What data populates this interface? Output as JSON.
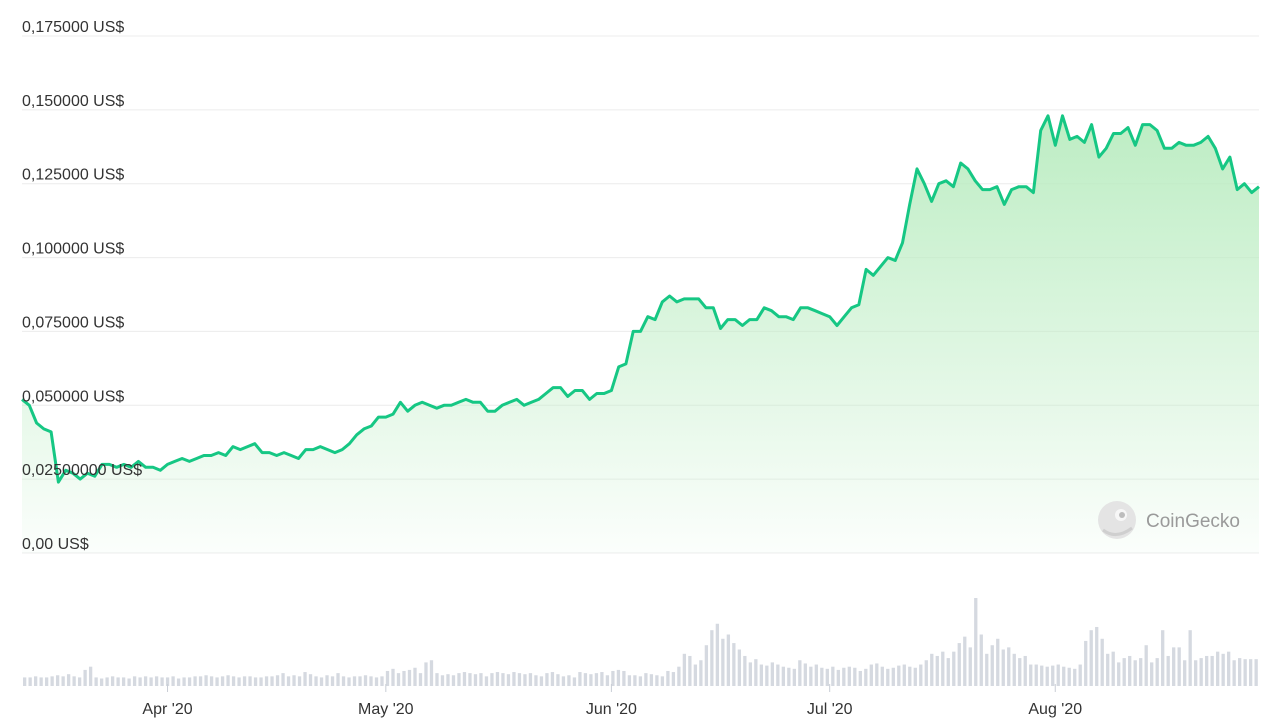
{
  "chart_data": {
    "type": "area",
    "title": "",
    "xlabel": "",
    "ylabel": "",
    "watermark": "CoinGecko",
    "line_color": "#16c784",
    "fill_color": "#b9ecc0",
    "volume_color": "#d5d9e0",
    "grid": true,
    "legend": "none",
    "x_range": [
      "2020-03-12",
      "2020-08-25"
    ],
    "ylim": [
      0,
      0.175
    ],
    "y_ticks": [
      {
        "value": 0,
        "label": "0,00 US$"
      },
      {
        "value": 0.025,
        "label": "0,02500000 US$"
      },
      {
        "value": 0.05,
        "label": "0,050000 US$"
      },
      {
        "value": 0.075,
        "label": "0,075000 US$"
      },
      {
        "value": 0.1,
        "label": "0,100000 US$"
      },
      {
        "value": 0.125,
        "label": "0,125000 US$"
      },
      {
        "value": 0.15,
        "label": "0,150000 US$"
      },
      {
        "value": 0.175,
        "label": "0,175000 US$"
      }
    ],
    "x_ticks": [
      {
        "date": "2020-04-01",
        "label": "Apr '20"
      },
      {
        "date": "2020-05-01",
        "label": "May '20"
      },
      {
        "date": "2020-06-01",
        "label": "Jun '20"
      },
      {
        "date": "2020-07-01",
        "label": "Jul '20"
      },
      {
        "date": "2020-08-01",
        "label": "Aug '20"
      }
    ],
    "series": [
      {
        "points": [
          [
            "2020-03-12",
            0.052
          ],
          [
            "2020-03-13",
            0.05
          ],
          [
            "2020-03-14",
            0.044
          ],
          [
            "2020-03-15",
            0.042
          ],
          [
            "2020-03-16",
            0.041
          ],
          [
            "2020-03-17",
            0.024
          ],
          [
            "2020-03-18",
            0.028
          ],
          [
            "2020-03-19",
            0.027
          ],
          [
            "2020-03-20",
            0.025
          ],
          [
            "2020-03-21",
            0.027
          ],
          [
            "2020-03-22",
            0.026
          ],
          [
            "2020-03-23",
            0.03
          ],
          [
            "2020-03-24",
            0.03
          ],
          [
            "2020-03-25",
            0.029
          ],
          [
            "2020-03-26",
            0.03
          ],
          [
            "2020-03-27",
            0.029
          ],
          [
            "2020-03-28",
            0.031
          ],
          [
            "2020-03-29",
            0.029
          ],
          [
            "2020-03-30",
            0.029
          ],
          [
            "2020-03-31",
            0.028
          ],
          [
            "2020-04-01",
            0.03
          ],
          [
            "2020-04-02",
            0.031
          ],
          [
            "2020-04-03",
            0.032
          ],
          [
            "2020-04-04",
            0.031
          ],
          [
            "2020-04-05",
            0.032
          ],
          [
            "2020-04-06",
            0.033
          ],
          [
            "2020-04-07",
            0.033
          ],
          [
            "2020-04-08",
            0.034
          ],
          [
            "2020-04-09",
            0.033
          ],
          [
            "2020-04-10",
            0.036
          ],
          [
            "2020-04-11",
            0.035
          ],
          [
            "2020-04-12",
            0.036
          ],
          [
            "2020-04-13",
            0.037
          ],
          [
            "2020-04-14",
            0.034
          ],
          [
            "2020-04-15",
            0.034
          ],
          [
            "2020-04-16",
            0.033
          ],
          [
            "2020-04-17",
            0.034
          ],
          [
            "2020-04-18",
            0.033
          ],
          [
            "2020-04-19",
            0.032
          ],
          [
            "2020-04-20",
            0.035
          ],
          [
            "2020-04-21",
            0.035
          ],
          [
            "2020-04-22",
            0.036
          ],
          [
            "2020-04-23",
            0.035
          ],
          [
            "2020-04-24",
            0.034
          ],
          [
            "2020-04-25",
            0.035
          ],
          [
            "2020-04-26",
            0.037
          ],
          [
            "2020-04-27",
            0.04
          ],
          [
            "2020-04-28",
            0.042
          ],
          [
            "2020-04-29",
            0.043
          ],
          [
            "2020-04-30",
            0.046
          ],
          [
            "2020-05-01",
            0.046
          ],
          [
            "2020-05-02",
            0.047
          ],
          [
            "2020-05-03",
            0.051
          ],
          [
            "2020-05-04",
            0.048
          ],
          [
            "2020-05-05",
            0.05
          ],
          [
            "2020-05-06",
            0.051
          ],
          [
            "2020-05-07",
            0.05
          ],
          [
            "2020-05-08",
            0.049
          ],
          [
            "2020-05-09",
            0.05
          ],
          [
            "2020-05-10",
            0.05
          ],
          [
            "2020-05-11",
            0.051
          ],
          [
            "2020-05-12",
            0.052
          ],
          [
            "2020-05-13",
            0.051
          ],
          [
            "2020-05-14",
            0.051
          ],
          [
            "2020-05-15",
            0.048
          ],
          [
            "2020-05-16",
            0.048
          ],
          [
            "2020-05-17",
            0.05
          ],
          [
            "2020-05-18",
            0.051
          ],
          [
            "2020-05-19",
            0.052
          ],
          [
            "2020-05-20",
            0.05
          ],
          [
            "2020-05-21",
            0.051
          ],
          [
            "2020-05-22",
            0.052
          ],
          [
            "2020-05-23",
            0.054
          ],
          [
            "2020-05-24",
            0.056
          ],
          [
            "2020-05-25",
            0.056
          ],
          [
            "2020-05-26",
            0.053
          ],
          [
            "2020-05-27",
            0.055
          ],
          [
            "2020-05-28",
            0.055
          ],
          [
            "2020-05-29",
            0.052
          ],
          [
            "2020-05-30",
            0.054
          ],
          [
            "2020-05-31",
            0.054
          ],
          [
            "2020-06-01",
            0.055
          ],
          [
            "2020-06-02",
            0.063
          ],
          [
            "2020-06-03",
            0.064
          ],
          [
            "2020-06-04",
            0.075
          ],
          [
            "2020-06-05",
            0.075
          ],
          [
            "2020-06-06",
            0.08
          ],
          [
            "2020-06-07",
            0.079
          ],
          [
            "2020-06-08",
            0.085
          ],
          [
            "2020-06-09",
            0.087
          ],
          [
            "2020-06-10",
            0.085
          ],
          [
            "2020-06-11",
            0.086
          ],
          [
            "2020-06-12",
            0.086
          ],
          [
            "2020-06-13",
            0.086
          ],
          [
            "2020-06-14",
            0.083
          ],
          [
            "2020-06-15",
            0.083
          ],
          [
            "2020-06-16",
            0.076
          ],
          [
            "2020-06-17",
            0.079
          ],
          [
            "2020-06-18",
            0.079
          ],
          [
            "2020-06-19",
            0.077
          ],
          [
            "2020-06-20",
            0.079
          ],
          [
            "2020-06-21",
            0.079
          ],
          [
            "2020-06-22",
            0.083
          ],
          [
            "2020-06-23",
            0.082
          ],
          [
            "2020-06-24",
            0.08
          ],
          [
            "2020-06-25",
            0.08
          ],
          [
            "2020-06-26",
            0.079
          ],
          [
            "2020-06-27",
            0.083
          ],
          [
            "2020-06-28",
            0.083
          ],
          [
            "2020-06-29",
            0.082
          ],
          [
            "2020-06-30",
            0.081
          ],
          [
            "2020-07-01",
            0.08
          ],
          [
            "2020-07-02",
            0.077
          ],
          [
            "2020-07-03",
            0.08
          ],
          [
            "2020-07-04",
            0.083
          ],
          [
            "2020-07-05",
            0.084
          ],
          [
            "2020-07-06",
            0.096
          ],
          [
            "2020-07-07",
            0.094
          ],
          [
            "2020-07-08",
            0.097
          ],
          [
            "2020-07-09",
            0.1
          ],
          [
            "2020-07-10",
            0.099
          ],
          [
            "2020-07-11",
            0.105
          ],
          [
            "2020-07-12",
            0.118
          ],
          [
            "2020-07-13",
            0.13
          ],
          [
            "2020-07-14",
            0.125
          ],
          [
            "2020-07-15",
            0.119
          ],
          [
            "2020-07-16",
            0.125
          ],
          [
            "2020-07-17",
            0.126
          ],
          [
            "2020-07-18",
            0.124
          ],
          [
            "2020-07-19",
            0.132
          ],
          [
            "2020-07-20",
            0.13
          ],
          [
            "2020-07-21",
            0.126
          ],
          [
            "2020-07-22",
            0.123
          ],
          [
            "2020-07-23",
            0.123
          ],
          [
            "2020-07-24",
            0.124
          ],
          [
            "2020-07-25",
            0.118
          ],
          [
            "2020-07-26",
            0.123
          ],
          [
            "2020-07-27",
            0.124
          ],
          [
            "2020-07-28",
            0.124
          ],
          [
            "2020-07-29",
            0.122
          ],
          [
            "2020-07-30",
            0.143
          ],
          [
            "2020-07-31",
            0.148
          ],
          [
            "2020-08-01",
            0.138
          ],
          [
            "2020-08-02",
            0.148
          ],
          [
            "2020-08-03",
            0.14
          ],
          [
            "2020-08-04",
            0.141
          ],
          [
            "2020-08-05",
            0.139
          ],
          [
            "2020-08-06",
            0.145
          ],
          [
            "2020-08-07",
            0.134
          ],
          [
            "2020-08-08",
            0.137
          ],
          [
            "2020-08-09",
            0.142
          ],
          [
            "2020-08-10",
            0.142
          ],
          [
            "2020-08-11",
            0.144
          ],
          [
            "2020-08-12",
            0.138
          ],
          [
            "2020-08-13",
            0.145
          ],
          [
            "2020-08-14",
            0.145
          ],
          [
            "2020-08-15",
            0.143
          ],
          [
            "2020-08-16",
            0.137
          ],
          [
            "2020-08-17",
            0.137
          ],
          [
            "2020-08-18",
            0.139
          ],
          [
            "2020-08-19",
            0.138
          ],
          [
            "2020-08-20",
            0.138
          ],
          [
            "2020-08-21",
            0.139
          ],
          [
            "2020-08-22",
            0.141
          ],
          [
            "2020-08-23",
            0.137
          ],
          [
            "2020-08-24",
            0.13
          ],
          [
            "2020-08-25",
            0.134
          ],
          [
            "2020-08-26",
            0.123
          ],
          [
            "2020-08-27",
            0.125
          ],
          [
            "2020-08-28",
            0.122
          ],
          [
            "2020-08-29",
            0.124
          ]
        ]
      }
    ],
    "volume": {
      "values": [
        8,
        8,
        9,
        8,
        8,
        9,
        10,
        9,
        11,
        9,
        8,
        15,
        18,
        8,
        7,
        8,
        9,
        8,
        8,
        7,
        9,
        8,
        9,
        8,
        9,
        8,
        8,
        9,
        7,
        8,
        8,
        9,
        9,
        10,
        9,
        8,
        9,
        10,
        9,
        8,
        9,
        9,
        8,
        8,
        9,
        9,
        10,
        12,
        9,
        10,
        9,
        13,
        11,
        9,
        8,
        10,
        9,
        12,
        9,
        8,
        9,
        9,
        10,
        9,
        8,
        9,
        14,
        16,
        12,
        14,
        15,
        17,
        12,
        22,
        24,
        12,
        10,
        11,
        10,
        12,
        13,
        12,
        11,
        12,
        9,
        12,
        13,
        12,
        11,
        13,
        12,
        11,
        12,
        10,
        9,
        12,
        13,
        11,
        9,
        10,
        8,
        13,
        12,
        11,
        12,
        13,
        10,
        14,
        15,
        14,
        10,
        10,
        9,
        12,
        11,
        10,
        9,
        14,
        13,
        18,
        30,
        28,
        20,
        24,
        38,
        52,
        58,
        44,
        48,
        40,
        34,
        28,
        22,
        25,
        20,
        19,
        22,
        20,
        18,
        17,
        16,
        24,
        21,
        18,
        20,
        17,
        16,
        18,
        15,
        17,
        18,
        17,
        14,
        16,
        20,
        21,
        18,
        16,
        17,
        19,
        20,
        18,
        17,
        20,
        24,
        30,
        28,
        32,
        26,
        32,
        40,
        46,
        36,
        82,
        48,
        30,
        38,
        44,
        34,
        36,
        30,
        26,
        28,
        20,
        20,
        19,
        18,
        19,
        20,
        18,
        17,
        16,
        20,
        42,
        52,
        55,
        44,
        30,
        32,
        22,
        26,
        28,
        24,
        26,
        38,
        22,
        26,
        52,
        28,
        36,
        36,
        24,
        52,
        24,
        26,
        28,
        28,
        32,
        30,
        32,
        24,
        26,
        25,
        25,
        25
      ]
    }
  }
}
